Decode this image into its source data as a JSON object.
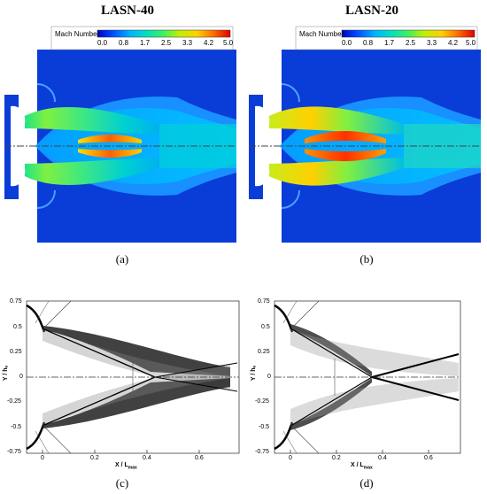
{
  "panels": {
    "a": {
      "title": "LASN-40",
      "caption": "(a)"
    },
    "b": {
      "title": "LASN-20",
      "caption": "(b)"
    },
    "c": {
      "caption": "(c)"
    },
    "d": {
      "caption": "(d)"
    }
  },
  "legend": {
    "title": "Mach Number",
    "ticks": [
      "0.0",
      "0.8",
      "1.7",
      "2.5",
      "3.3",
      "4.2",
      "5.0"
    ],
    "colors": [
      "#0000c8",
      "#0050ff",
      "#00b4ff",
      "#00e0c0",
      "#40f060",
      "#c0f000",
      "#ffd000",
      "#ff7000",
      "#e00000"
    ]
  },
  "schlieren_axes": {
    "ylabel": "Y / hₑ",
    "xlabel": "X / L",
    "xlabel_sub": "max",
    "yticks": [
      "0.75",
      "0.5",
      "0.25",
      "0",
      "-0.25",
      "-0.5",
      "-0.75"
    ],
    "xticks": [
      "0",
      "0.2",
      "0.4",
      "0.6"
    ]
  }
}
